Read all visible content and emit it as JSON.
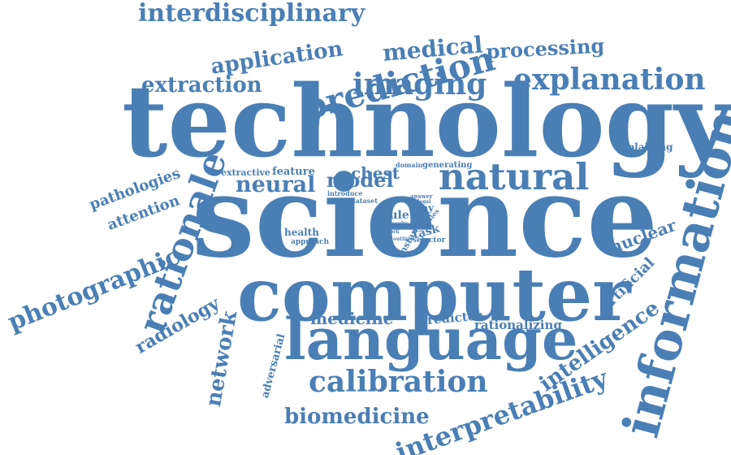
{
  "color": "#4a7fb5",
  "words": [
    {
      "id": "technology",
      "text": "technology"
    },
    {
      "id": "science",
      "text": "science"
    },
    {
      "id": "computer",
      "text": "computer"
    },
    {
      "id": "language",
      "text": "language"
    },
    {
      "id": "information",
      "text": "information"
    },
    {
      "id": "interdisciplinary",
      "text": "interdisciplinary"
    },
    {
      "id": "prediction",
      "text": "prediction"
    },
    {
      "id": "application",
      "text": "application"
    },
    {
      "id": "medical",
      "text": "medical"
    },
    {
      "id": "processing",
      "text": "processing"
    },
    {
      "id": "extraction",
      "text": "extraction"
    },
    {
      "id": "imaging",
      "text": "imaging"
    },
    {
      "id": "explanation",
      "text": "explanation"
    },
    {
      "id": "explaining",
      "text": "explaining"
    },
    {
      "id": "pathologies",
      "text": "pathologies"
    },
    {
      "id": "attention",
      "text": "attention"
    },
    {
      "id": "photographic",
      "text": "photographic"
    },
    {
      "id": "rationale",
      "text": "rationale"
    },
    {
      "id": "radiology",
      "text": "radiology"
    },
    {
      "id": "extractive",
      "text": "extractive"
    },
    {
      "id": "feature",
      "text": "feature"
    },
    {
      "id": "chest",
      "text": "chest"
    },
    {
      "id": "domain",
      "text": "domain"
    },
    {
      "id": "generating",
      "text": "generating"
    },
    {
      "id": "natural",
      "text": "natural"
    },
    {
      "id": "neural",
      "text": "neural"
    },
    {
      "id": "model",
      "text": "model"
    },
    {
      "id": "introduce",
      "text": "introduce"
    },
    {
      "id": "dataset",
      "text": "dataset"
    },
    {
      "id": "answer",
      "text": "answer"
    },
    {
      "id": "legal",
      "text": "legal"
    },
    {
      "id": "ray",
      "text": "ray"
    },
    {
      "id": "life",
      "text": "life"
    },
    {
      "id": "rule",
      "text": "rule"
    },
    {
      "id": "results",
      "text": "results"
    },
    {
      "id": "health",
      "text": "health"
    },
    {
      "id": "approach",
      "text": "approach"
    },
    {
      "id": "task",
      "text": "task"
    },
    {
      "id": "instance",
      "text": "instance"
    },
    {
      "id": "selector",
      "text": "selector"
    },
    {
      "id": "work",
      "text": "work"
    },
    {
      "id": "outline",
      "text": "outline"
    },
    {
      "id": "nules",
      "text": "nules"
    },
    {
      "id": "nuclear",
      "text": "nuclear"
    },
    {
      "id": "artificial",
      "text": "artificial"
    },
    {
      "id": "network",
      "text": "network"
    },
    {
      "id": "adversarial",
      "text": "adversarial"
    },
    {
      "id": "medicine",
      "text": "medicine"
    },
    {
      "id": "predictor",
      "text": "predictor"
    },
    {
      "id": "rationalizing",
      "text": "rationalizing"
    },
    {
      "id": "intelligence",
      "text": "intelligence"
    },
    {
      "id": "calibration",
      "text": "calibration"
    },
    {
      "id": "biomedicine",
      "text": "biomedicine"
    },
    {
      "id": "interpretability",
      "text": "interpretability"
    }
  ]
}
